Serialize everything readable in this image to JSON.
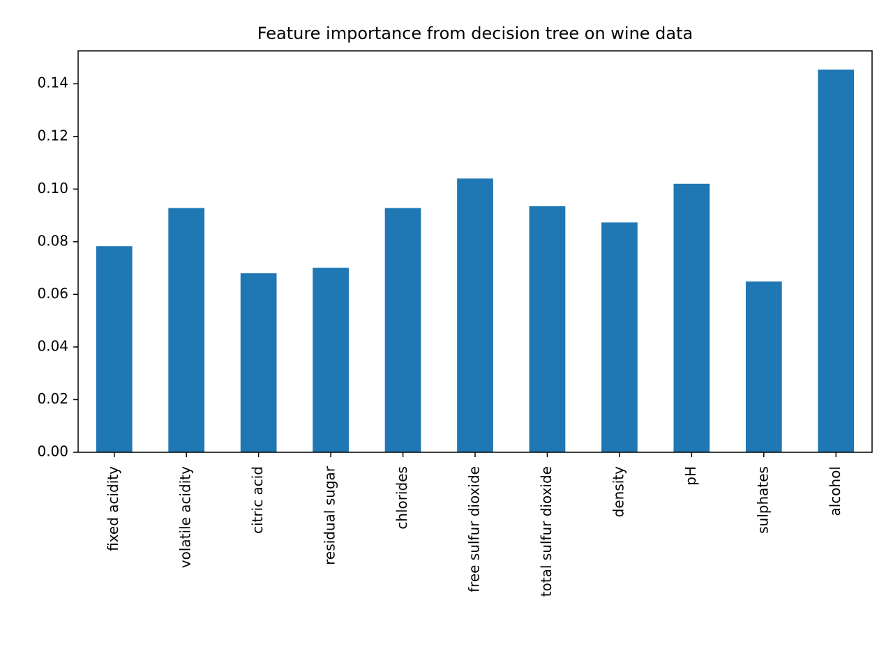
{
  "chart_data": {
    "type": "bar",
    "title": "Feature importance from decision tree on wine data",
    "xlabel": "",
    "ylabel": "",
    "categories": [
      "fixed acidity",
      "volatile acidity",
      "citric acid",
      "residual sugar",
      "chlorides",
      "free sulfur dioxide",
      "total sulfur dioxide",
      "density",
      "pH",
      "sulphates",
      "alcohol"
    ],
    "values": [
      0.0783,
      0.0928,
      0.068,
      0.0701,
      0.0928,
      0.104,
      0.0935,
      0.0873,
      0.102,
      0.0649,
      0.1454
    ],
    "ylim": [
      0,
      0.1525
    ],
    "yticks": [
      "0.00",
      "0.02",
      "0.04",
      "0.06",
      "0.08",
      "0.10",
      "0.12",
      "0.14"
    ],
    "ytick_values": [
      0,
      0.02,
      0.04,
      0.06,
      0.08,
      0.1,
      0.12,
      0.14
    ],
    "bar_color": "#1f77b4",
    "grid": false,
    "legend": "none"
  }
}
